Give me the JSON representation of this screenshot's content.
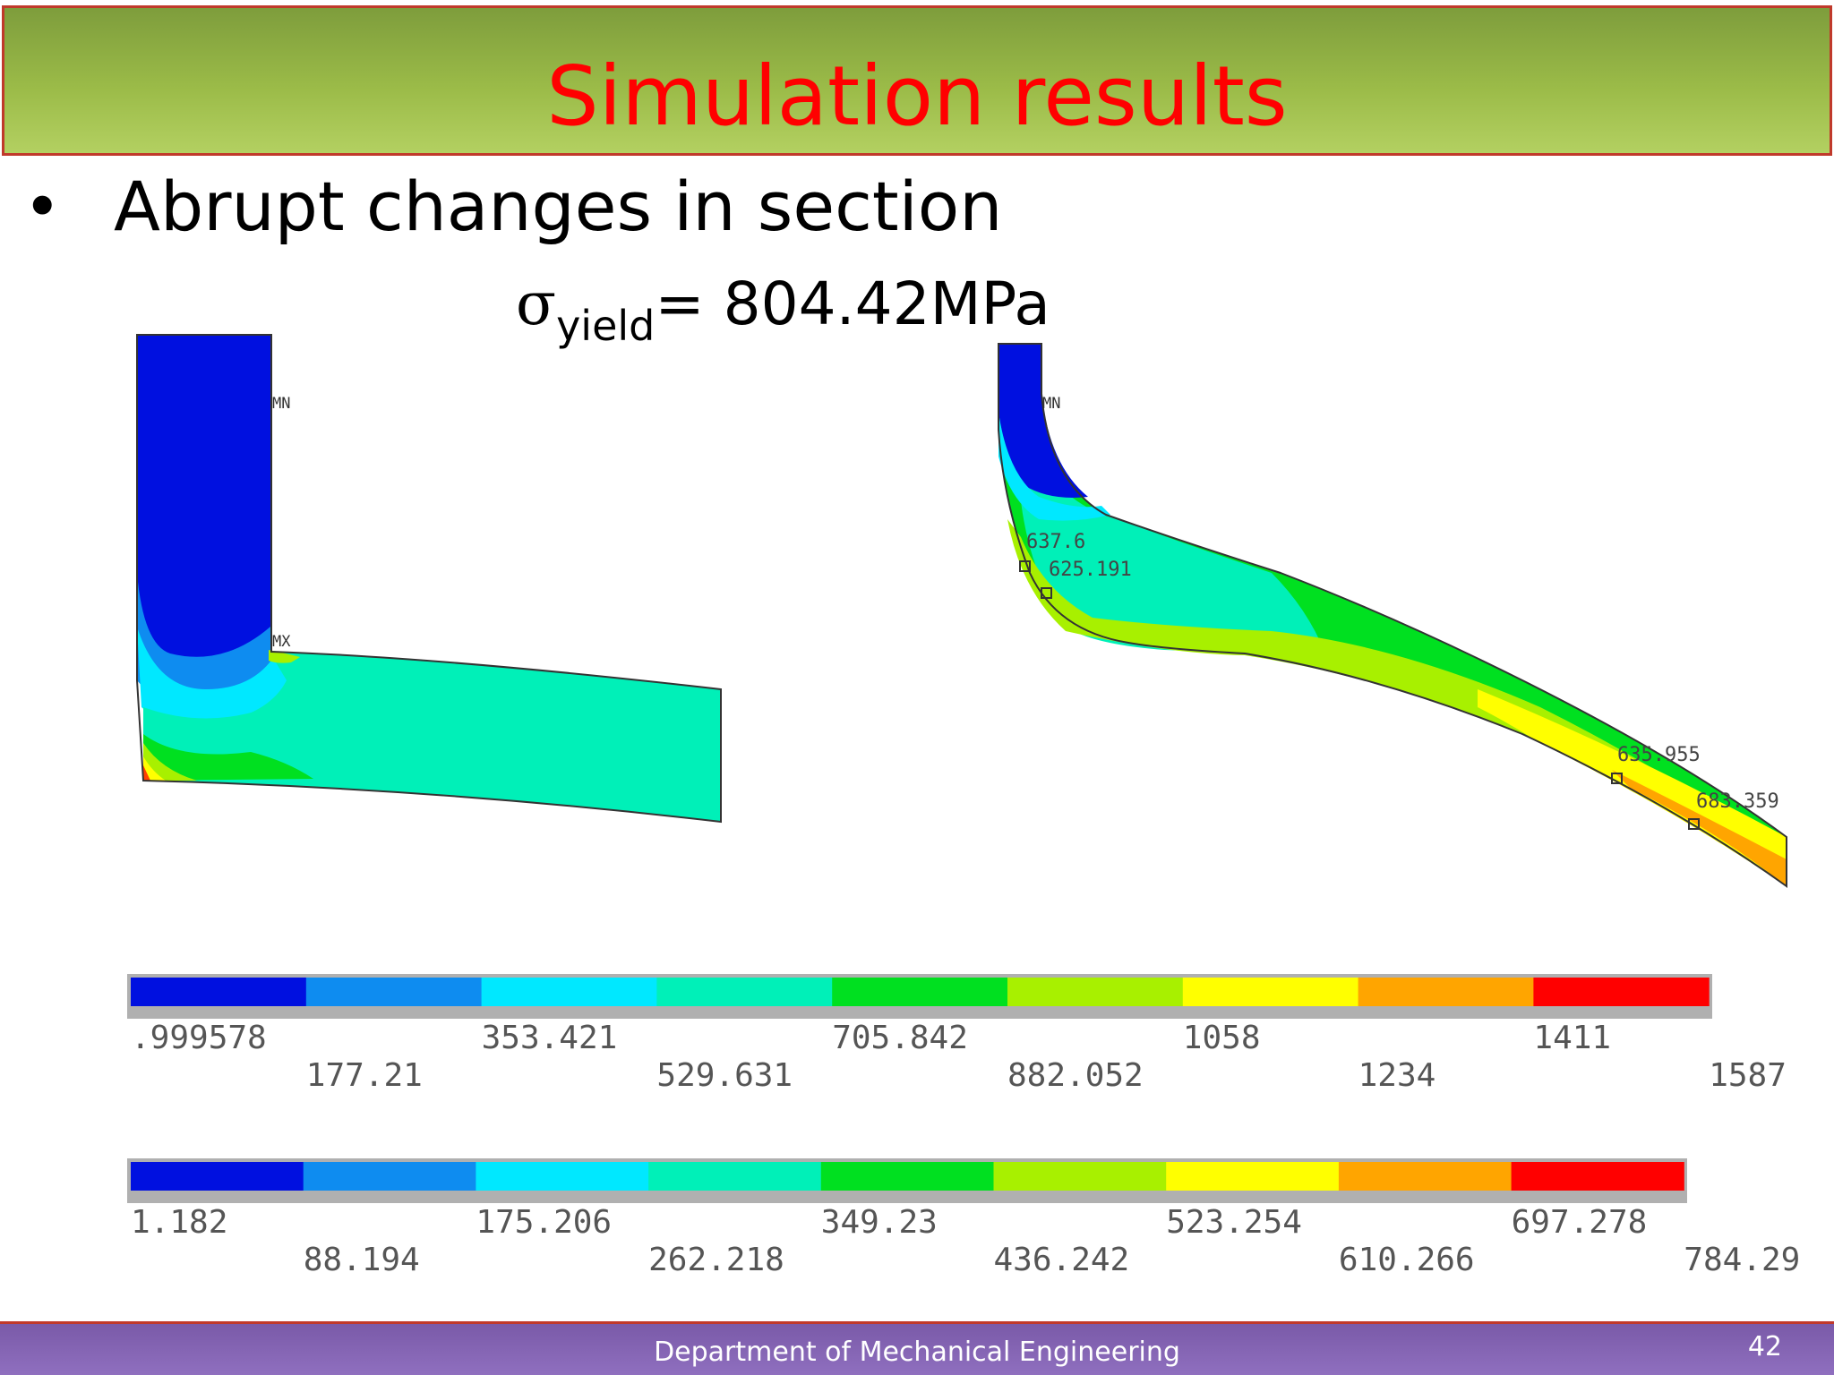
{
  "slide": {
    "title": "Simulation results",
    "bullet": "Abrupt changes in section",
    "sigma_symbol": "σ",
    "sigma_subscript": "yield",
    "sigma_value": "= 804.42MPa",
    "footer": "Department of Mechanical Engineering",
    "page_number": "42"
  },
  "left_plot": {
    "labels": [
      "MN",
      "MX"
    ]
  },
  "right_plot": {
    "labels": [
      "MN",
      "637.6",
      "625.191",
      "635.955",
      "683.359"
    ]
  },
  "legends": [
    {
      "name": "legend-top",
      "colors": [
        "#0010e0",
        "#0e8cf0",
        "#00e8ff",
        "#00f0b8",
        "#00e020",
        "#a8f000",
        "#ffff00",
        "#ffa500",
        "#ff0000"
      ],
      "upper_labels": [
        ".999578",
        "353.421",
        "705.842",
        "1058",
        "1411"
      ],
      "lower_labels": [
        "177.21",
        "529.631",
        "882.052",
        "1234",
        "1587"
      ]
    },
    {
      "name": "legend-bottom",
      "colors": [
        "#0010e0",
        "#0e8cf0",
        "#00e8ff",
        "#00f0b8",
        "#00e020",
        "#a8f000",
        "#ffff00",
        "#ffa500",
        "#ff0000"
      ],
      "upper_labels": [
        "1.182",
        "175.206",
        "349.23",
        "523.254",
        "697.278"
      ],
      "lower_labels": [
        "88.194",
        "262.218",
        "436.242",
        "610.266",
        "784.29"
      ]
    }
  ]
}
